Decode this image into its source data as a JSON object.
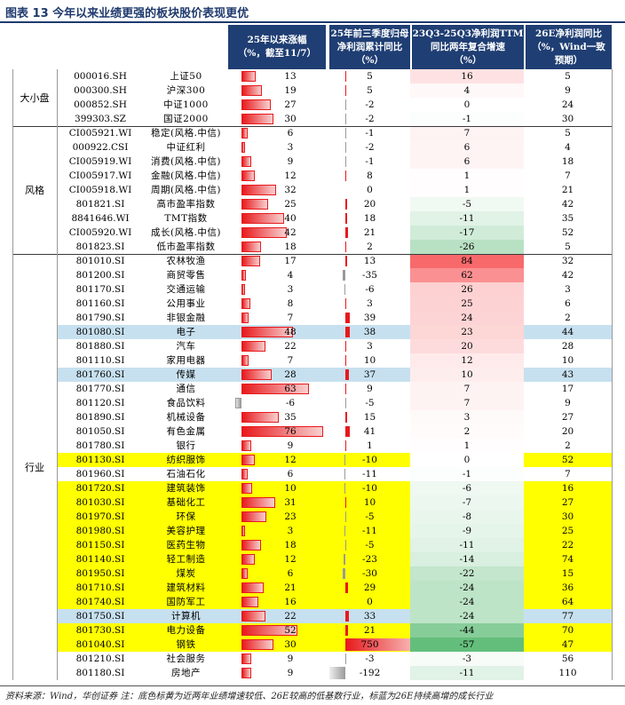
{
  "title": "图表 13   今年以来业绩更强的板块股价表现更优",
  "footer": "资料来源：Wind，华创证券  注：底色标黄为近两年业绩增速较低、26E较高的低基数行业，标蓝为26E持续高增的成长行业",
  "headers": {
    "h1": "25年以来涨幅",
    "h1b": "（%，截至11/7）",
    "h2": "25年前三季度归母",
    "h2b": "净利润累计同比",
    "h2c": "（%）",
    "h3": "23Q3-25Q3净利润TTM",
    "h3b": "同比两年复合增速",
    "h3c": "（%）",
    "h4": "26E净利润同比",
    "h4b": "（%，Wind一致",
    "h4c": "预期）"
  },
  "groups": [
    {
      "label": "大小盘",
      "start": 0,
      "end": 3
    },
    {
      "label": "风格",
      "start": 4,
      "end": 12
    },
    {
      "label": "行业",
      "start": 13,
      "end": 42
    }
  ],
  "colors": {
    "header_bg": "#1f3e73",
    "highlight_yellow": "#ffff00",
    "highlight_blue": "#c7e0ef",
    "bar_red": "#e8191c",
    "bar_gray": "#9a9a9a",
    "heat_red": "#f8696b",
    "heat_green": "#63be7b"
  },
  "chart_data": {
    "type": "table",
    "title": "今年以来业绩更强的板块股价表现更优",
    "columns": [
      "代码",
      "名称",
      "25年以来涨幅(%，截至11/7)",
      "25年前三季度归母净利润累计同比(%)",
      "23Q3-25Q3净利润TTM同比两年复合增速(%)",
      "26E净利润同比(%，Wind一致预期)"
    ],
    "rows": [
      {
        "code": "000016.SH",
        "name": "上证50",
        "ret": 13,
        "profit": 5,
        "cagr": 16,
        "e26": 5,
        "hl": ""
      },
      {
        "code": "000300.SH",
        "name": "沪深300",
        "ret": 19,
        "profit": 5,
        "cagr": 4,
        "e26": 9,
        "hl": ""
      },
      {
        "code": "000852.SH",
        "name": "中证1000",
        "ret": 27,
        "profit": -2,
        "cagr": 0,
        "e26": 24,
        "hl": ""
      },
      {
        "code": "399303.SZ",
        "name": "国证2000",
        "ret": 30,
        "profit": -2,
        "cagr": -1,
        "e26": 30,
        "hl": ""
      },
      {
        "code": "CI005921.WI",
        "name": "稳定(风格.中信)",
        "ret": 6,
        "profit": -1,
        "cagr": 7,
        "e26": 5,
        "hl": ""
      },
      {
        "code": "000922.CSI",
        "name": "中证红利",
        "ret": 3,
        "profit": -2,
        "cagr": 6,
        "e26": 4,
        "hl": ""
      },
      {
        "code": "CI005919.WI",
        "name": "消费(风格.中信)",
        "ret": 9,
        "profit": -1,
        "cagr": 6,
        "e26": 18,
        "hl": ""
      },
      {
        "code": "CI005917.WI",
        "name": "金融(风格.中信)",
        "ret": 12,
        "profit": 8,
        "cagr": 1,
        "e26": 7,
        "hl": ""
      },
      {
        "code": "CI005918.WI",
        "name": "周期(风格.中信)",
        "ret": 32,
        "profit": 0,
        "cagr": 1,
        "e26": 21,
        "hl": ""
      },
      {
        "code": "801821.SI",
        "name": "高市盈率指数",
        "ret": 25,
        "profit": 20,
        "cagr": -5,
        "e26": 42,
        "hl": ""
      },
      {
        "code": "8841646.WI",
        "name": "TMT指数",
        "ret": 40,
        "profit": 18,
        "cagr": -11,
        "e26": 35,
        "hl": ""
      },
      {
        "code": "CI005920.WI",
        "name": "成长(风格.中信)",
        "ret": 42,
        "profit": 21,
        "cagr": -17,
        "e26": 52,
        "hl": ""
      },
      {
        "code": "801823.SI",
        "name": "低市盈率指数",
        "ret": 18,
        "profit": 2,
        "cagr": -26,
        "e26": 5,
        "hl": ""
      },
      {
        "code": "801010.SI",
        "name": "农林牧渔",
        "ret": 17,
        "profit": 13,
        "cagr": 84,
        "e26": 32,
        "hl": ""
      },
      {
        "code": "801200.SI",
        "name": "商贸零售",
        "ret": 4,
        "profit": -35,
        "cagr": 62,
        "e26": 42,
        "hl": ""
      },
      {
        "code": "801170.SI",
        "name": "交通运输",
        "ret": 3,
        "profit": -6,
        "cagr": 26,
        "e26": 3,
        "hl": ""
      },
      {
        "code": "801160.SI",
        "name": "公用事业",
        "ret": 8,
        "profit": 3,
        "cagr": 25,
        "e26": 6,
        "hl": ""
      },
      {
        "code": "801790.SI",
        "name": "非银金融",
        "ret": 7,
        "profit": 39,
        "cagr": 24,
        "e26": 2,
        "hl": ""
      },
      {
        "code": "801080.SI",
        "name": "电子",
        "ret": 48,
        "profit": 38,
        "cagr": 23,
        "e26": 44,
        "hl": "blue"
      },
      {
        "code": "801880.SI",
        "name": "汽车",
        "ret": 22,
        "profit": 3,
        "cagr": 20,
        "e26": 28,
        "hl": ""
      },
      {
        "code": "801110.SI",
        "name": "家用电器",
        "ret": 7,
        "profit": 10,
        "cagr": 12,
        "e26": 10,
        "hl": ""
      },
      {
        "code": "801760.SI",
        "name": "传媒",
        "ret": 28,
        "profit": 37,
        "cagr": 10,
        "e26": 43,
        "hl": "blue"
      },
      {
        "code": "801770.SI",
        "name": "通信",
        "ret": 63,
        "profit": 9,
        "cagr": 7,
        "e26": 17,
        "hl": ""
      },
      {
        "code": "801120.SI",
        "name": "食品饮料",
        "ret": -6,
        "profit": -5,
        "cagr": 7,
        "e26": 9,
        "hl": ""
      },
      {
        "code": "801890.SI",
        "name": "机械设备",
        "ret": 35,
        "profit": 15,
        "cagr": 3,
        "e26": 27,
        "hl": ""
      },
      {
        "code": "801050.SI",
        "name": "有色金属",
        "ret": 76,
        "profit": 41,
        "cagr": 2,
        "e26": 20,
        "hl": ""
      },
      {
        "code": "801780.SI",
        "name": "银行",
        "ret": 9,
        "profit": 1,
        "cagr": 1,
        "e26": 2,
        "hl": ""
      },
      {
        "code": "801130.SI",
        "name": "纺织服饰",
        "ret": 12,
        "profit": -10,
        "cagr": 0,
        "e26": 52,
        "hl": "yellow"
      },
      {
        "code": "801960.SI",
        "name": "石油石化",
        "ret": 6,
        "profit": -11,
        "cagr": -1,
        "e26": 7,
        "hl": ""
      },
      {
        "code": "801720.SI",
        "name": "建筑装饰",
        "ret": 10,
        "profit": -10,
        "cagr": -6,
        "e26": 16,
        "hl": "yellow"
      },
      {
        "code": "801030.SI",
        "name": "基础化工",
        "ret": 31,
        "profit": 10,
        "cagr": -7,
        "e26": 27,
        "hl": "yellow"
      },
      {
        "code": "801970.SI",
        "name": "环保",
        "ret": 23,
        "profit": -5,
        "cagr": -8,
        "e26": 30,
        "hl": "yellow"
      },
      {
        "code": "801980.SI",
        "name": "美容护理",
        "ret": 3,
        "profit": -11,
        "cagr": -9,
        "e26": 25,
        "hl": "yellow"
      },
      {
        "code": "801150.SI",
        "name": "医药生物",
        "ret": 18,
        "profit": -5,
        "cagr": -11,
        "e26": 22,
        "hl": "yellow"
      },
      {
        "code": "801140.SI",
        "name": "轻工制造",
        "ret": 12,
        "profit": -23,
        "cagr": -14,
        "e26": 74,
        "hl": "yellow"
      },
      {
        "code": "801950.SI",
        "name": "煤炭",
        "ret": 6,
        "profit": -30,
        "cagr": -22,
        "e26": 15,
        "hl": "yellow"
      },
      {
        "code": "801710.SI",
        "name": "建筑材料",
        "ret": 21,
        "profit": 29,
        "cagr": -24,
        "e26": 36,
        "hl": "yellow"
      },
      {
        "code": "801740.SI",
        "name": "国防军工",
        "ret": 16,
        "profit": 0,
        "cagr": -24,
        "e26": 64,
        "hl": "yellow"
      },
      {
        "code": "801750.SI",
        "name": "计算机",
        "ret": 22,
        "profit": 33,
        "cagr": -24,
        "e26": 77,
        "hl": "blue"
      },
      {
        "code": "801730.SI",
        "name": "电力设备",
        "ret": 52,
        "profit": 21,
        "cagr": -44,
        "e26": 70,
        "hl": "yellow"
      },
      {
        "code": "801040.SI",
        "name": "钢铁",
        "ret": 30,
        "profit": 750,
        "cagr": -57,
        "e26": 47,
        "hl": "yellow"
      },
      {
        "code": "801210.SI",
        "name": "社会服务",
        "ret": 9,
        "profit": -3,
        "cagr": -3,
        "e26": 56,
        "hl": ""
      },
      {
        "code": "801180.SI",
        "name": "房地产",
        "ret": 9,
        "profit": -192,
        "cagr": -11,
        "e26": 110,
        "hl": ""
      }
    ]
  }
}
